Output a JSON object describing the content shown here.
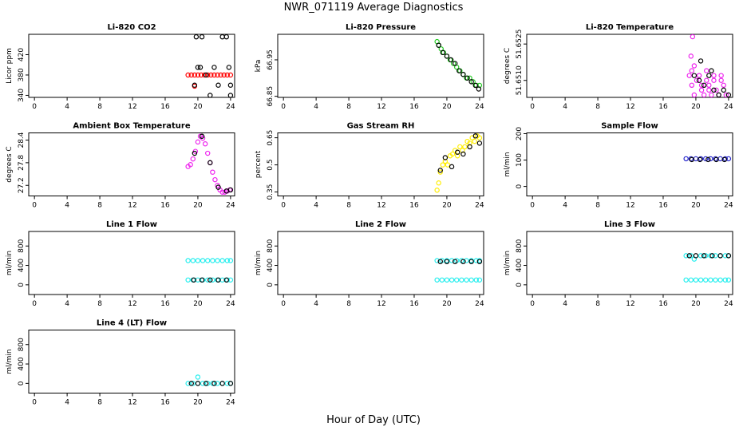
{
  "title": "NWR_071119  Average Diagnostics",
  "xlabel": "Hour of Day (UTC)",
  "chart_data": [
    {
      "type": "scatter",
      "title": "Li-820 CO2",
      "ylabel": "Licor ppm",
      "xlim": [
        -0.7,
        24.5
      ],
      "xticks": [
        0,
        4,
        8,
        12,
        16,
        20,
        24
      ],
      "ylim": [
        336,
        460
      ],
      "yticks": [
        340,
        380,
        420
      ],
      "series": [
        {
          "color": "#ff0000",
          "x": [
            18.8,
            19.2,
            19.6,
            20,
            20.4,
            20.8,
            21.2,
            21.6,
            22,
            22.4,
            22.8,
            23.2,
            23.6,
            24,
            19.6
          ],
          "values": [
            380,
            380,
            380,
            380,
            380,
            380,
            380,
            380,
            380,
            380,
            380,
            380,
            380,
            380,
            358
          ]
        },
        {
          "color": "#000000",
          "x": [
            19.6,
            19.8,
            20,
            20.3,
            20.5,
            21,
            21.5,
            22,
            22.5,
            23,
            23.5,
            23.8,
            24,
            24
          ],
          "values": [
            360,
            455,
            395,
            395,
            455,
            380,
            340,
            395,
            360,
            455,
            455,
            395,
            340,
            360
          ]
        }
      ]
    },
    {
      "type": "scatter",
      "title": "Li-820 Pressure",
      "ylabel": "kPa",
      "xlim": [
        -0.7,
        24.5
      ],
      "xticks": [
        0,
        4,
        8,
        12,
        16,
        20,
        24
      ],
      "ylim": [
        66.847,
        67.02
      ],
      "yticks": [
        66.85,
        66.95
      ],
      "series": [
        {
          "color": "#22cc22",
          "x": [
            18.8,
            19,
            19.3,
            19.6,
            20,
            20.4,
            20.8,
            21.2,
            21.6,
            22,
            22.4,
            22.8,
            23.2,
            23.6,
            24
          ],
          "values": [
            67.0,
            66.99,
            66.98,
            66.97,
            66.96,
            66.95,
            66.94,
            66.93,
            66.92,
            66.91,
            66.9,
            66.9,
            66.89,
            66.88,
            66.88
          ]
        },
        {
          "color": "#000000",
          "x": [
            19,
            19.5,
            20,
            20.5,
            21,
            21.5,
            22,
            22.5,
            23,
            23.5,
            23.9
          ],
          "values": [
            66.99,
            66.97,
            66.96,
            66.95,
            66.94,
            66.92,
            66.91,
            66.9,
            66.89,
            66.88,
            66.87
          ]
        }
      ]
    },
    {
      "type": "scatter",
      "title": "Li-820 Temperature",
      "ylabel": "degrees C",
      "xlim": [
        -0.7,
        24.5
      ],
      "xticks": [
        0,
        4,
        8,
        12,
        16,
        20,
        24
      ],
      "ylim": [
        51.6503,
        51.6529
      ],
      "yticks": [
        {
          "value": 51.651,
          "label": "51.6510"
        },
        {
          "value": 51.6525,
          "label": "51.6525"
        }
      ],
      "series": [
        {
          "color": "#ee22ee",
          "x": [
            19.2,
            19.5,
            19.8,
            20.1,
            20.4,
            20.7,
            21,
            21.3,
            21.6,
            21.9,
            22.2,
            22.5,
            22.8,
            23.1,
            23.4,
            23.7,
            19.5,
            20.4,
            21.3,
            22.2,
            23.1,
            19.8,
            20.7,
            21.6,
            19.6,
            19.4
          ],
          "values": [
            51.6512,
            51.6508,
            51.6504,
            51.651,
            51.6512,
            51.6506,
            51.6504,
            51.651,
            51.6508,
            51.6504,
            51.6512,
            51.6506,
            51.6504,
            51.651,
            51.6508,
            51.6504,
            51.6514,
            51.6512,
            51.6514,
            51.651,
            51.6512,
            51.6516,
            51.6508,
            51.6506,
            51.6528,
            51.652
          ]
        },
        {
          "color": "#000000",
          "x": [
            19.8,
            20.4,
            21,
            21.6,
            22.2,
            22.8,
            23.4,
            24,
            20.6,
            21.9
          ],
          "values": [
            51.6512,
            51.651,
            51.6508,
            51.6512,
            51.6506,
            51.6504,
            51.6506,
            51.6504,
            51.6518,
            51.6514
          ]
        }
      ]
    },
    {
      "type": "scatter",
      "title": "Ambient Box Temperature",
      "ylabel": "degrees C",
      "xlim": [
        -0.7,
        24.5
      ],
      "xticks": [
        0,
        4,
        8,
        12,
        16,
        20,
        24
      ],
      "ylim": [
        26.92,
        28.59
      ],
      "yticks": [
        27.2,
        27.8,
        28.4
      ],
      "series": [
        {
          "color": "#ee22ee",
          "x": [
            18.8,
            19.1,
            19.4,
            19.7,
            20,
            20.3,
            20.6,
            20.9,
            21.2,
            21.5,
            21.8,
            22.1,
            22.4,
            22.7,
            23,
            23.3,
            23.6,
            23.9
          ],
          "values": [
            27.7,
            27.75,
            27.9,
            28.1,
            28.35,
            28.5,
            28.45,
            28.3,
            28.05,
            27.8,
            27.55,
            27.35,
            27.2,
            27.08,
            27.02,
            27.02,
            27.05,
            27.08
          ]
        },
        {
          "color": "#000000",
          "x": [
            19.6,
            20.5,
            21.5,
            22.5,
            23.5,
            24
          ],
          "values": [
            28.05,
            28.5,
            27.8,
            27.15,
            27.05,
            27.08
          ]
        }
      ]
    },
    {
      "type": "scatter",
      "title": "Gas Stream RH",
      "ylabel": "percent",
      "xlim": [
        -0.7,
        24.5
      ],
      "xticks": [
        0,
        4,
        8,
        12,
        16,
        20,
        24
      ],
      "ylim": [
        0.328,
        0.677
      ],
      "yticks": [
        0.35,
        0.5,
        0.65
      ],
      "series": [
        {
          "color": "#ffee00",
          "x": [
            18.8,
            19,
            19.2,
            19.5,
            19.8,
            20.1,
            20.4,
            20.7,
            21,
            21.3,
            21.6,
            21.9,
            22.2,
            22.5,
            22.8,
            23.1,
            23.4,
            23.7,
            24
          ],
          "values": [
            0.36,
            0.4,
            0.46,
            0.5,
            0.52,
            0.5,
            0.55,
            0.56,
            0.58,
            0.55,
            0.6,
            0.58,
            0.6,
            0.63,
            0.62,
            0.65,
            0.63,
            0.66,
            0.65
          ]
        },
        {
          "color": "#000000",
          "x": [
            19.2,
            19.8,
            20.6,
            21.3,
            22,
            22.8,
            23.5,
            24
          ],
          "values": [
            0.47,
            0.54,
            0.49,
            0.57,
            0.56,
            0.6,
            0.66,
            0.62
          ]
        }
      ]
    },
    {
      "type": "scatter",
      "title": "Sample Flow",
      "ylabel": "ml/min",
      "xlim": [
        -0.7,
        24.5
      ],
      "xticks": [
        0,
        4,
        8,
        12,
        16,
        20,
        24
      ],
      "ylim": [
        -36,
        203
      ],
      "yticks": [
        0,
        100,
        200
      ],
      "series": [
        {
          "color": "#2222cc",
          "x": [
            18.8,
            19.4,
            20,
            20.6,
            21.2,
            21.8,
            22.4,
            23,
            23.6,
            24
          ],
          "values": [
            105,
            105,
            105,
            105,
            105,
            105,
            105,
            105,
            105,
            105
          ]
        },
        {
          "color": "#000000",
          "x": [
            19.5,
            20.5,
            21.5,
            22.5,
            23.5
          ],
          "values": [
            102,
            102,
            102,
            102,
            102
          ]
        }
      ]
    },
    {
      "type": "scatter",
      "title": "Line 1 Flow",
      "ylabel": "ml/min",
      "xlim": [
        -0.7,
        24.5
      ],
      "xticks": [
        0,
        4,
        8,
        12,
        16,
        20,
        24
      ],
      "ylim": [
        -200,
        1100
      ],
      "yticks": [
        0,
        400,
        800
      ],
      "series": [
        {
          "color": "#22eeee",
          "x": [
            18.8,
            19.4,
            20,
            20.6,
            21.2,
            21.8,
            22.4,
            23,
            23.6,
            24,
            18.8,
            19.4,
            20,
            20.6,
            21.2,
            21.8,
            22.4,
            23,
            23.6,
            24
          ],
          "values": [
            500,
            500,
            500,
            500,
            500,
            500,
            500,
            500,
            500,
            500,
            100,
            100,
            100,
            100,
            100,
            100,
            100,
            100,
            100,
            100
          ]
        },
        {
          "color": "#000000",
          "x": [
            19.5,
            20.5,
            21.5,
            22.5,
            23.5
          ],
          "values": [
            100,
            100,
            100,
            100,
            100
          ]
        }
      ]
    },
    {
      "type": "scatter",
      "title": "Line 2 Flow",
      "ylabel": "ml/min",
      "xlim": [
        -0.7,
        24.5
      ],
      "xticks": [
        0,
        4,
        8,
        12,
        16,
        20,
        24
      ],
      "ylim": [
        -200,
        1100
      ],
      "yticks": [
        0,
        400,
        800
      ],
      "series": [
        {
          "color": "#22eeee",
          "x": [
            18.8,
            19.4,
            20,
            20.6,
            21.2,
            21.8,
            22.4,
            23,
            23.6,
            24,
            18.8,
            19.4,
            20,
            20.6,
            21.2,
            21.8,
            22.4,
            23,
            23.6,
            24
          ],
          "values": [
            500,
            500,
            500,
            500,
            500,
            500,
            500,
            500,
            500,
            500,
            100,
            100,
            100,
            100,
            100,
            100,
            100,
            100,
            100,
            100
          ]
        },
        {
          "color": "#000000",
          "x": [
            19.2,
            20,
            21,
            22,
            23,
            24
          ],
          "values": [
            480,
            480,
            480,
            480,
            480,
            480
          ]
        }
      ]
    },
    {
      "type": "scatter",
      "title": "Line 3 Flow",
      "ylabel": "ml/min",
      "xlim": [
        -0.7,
        24.5
      ],
      "xticks": [
        0,
        4,
        8,
        12,
        16,
        20,
        24
      ],
      "ylim": [
        -200,
        1100
      ],
      "yticks": [
        0,
        400,
        800
      ],
      "series": [
        {
          "color": "#22eeee",
          "x": [
            18.8,
            19.4,
            19.8,
            20.6,
            21.2,
            21.8,
            22.4,
            23,
            23.6,
            24,
            18.8,
            19.4,
            20,
            20.6,
            21.2,
            21.8,
            22.4,
            23,
            23.6,
            24
          ],
          "values": [
            600,
            600,
            530,
            600,
            600,
            600,
            600,
            600,
            600,
            600,
            100,
            100,
            100,
            100,
            100,
            100,
            100,
            100,
            100,
            100
          ]
        },
        {
          "color": "#000000",
          "x": [
            19.2,
            20,
            21,
            22,
            23,
            24
          ],
          "values": [
            600,
            600,
            600,
            600,
            600,
            600
          ]
        }
      ]
    },
    {
      "type": "scatter",
      "title": "Line 4 (LT) Flow",
      "ylabel": "ml/min",
      "xlim": [
        -0.7,
        24.5
      ],
      "xticks": [
        0,
        4,
        8,
        12,
        16,
        20,
        24
      ],
      "ylim": [
        -200,
        1100
      ],
      "yticks": [
        0,
        400,
        800
      ],
      "series": [
        {
          "color": "#22eeee",
          "x": [
            18.8,
            19.4,
            20,
            20.6,
            21.2,
            21.8,
            22.4,
            23,
            23.6,
            24,
            20
          ],
          "values": [
            0,
            0,
            0,
            0,
            0,
            0,
            0,
            0,
            0,
            0,
            130
          ]
        },
        {
          "color": "#000000",
          "x": [
            19.2,
            20,
            21,
            22,
            23,
            24
          ],
          "values": [
            0,
            0,
            0,
            0,
            0,
            0
          ]
        }
      ]
    }
  ]
}
